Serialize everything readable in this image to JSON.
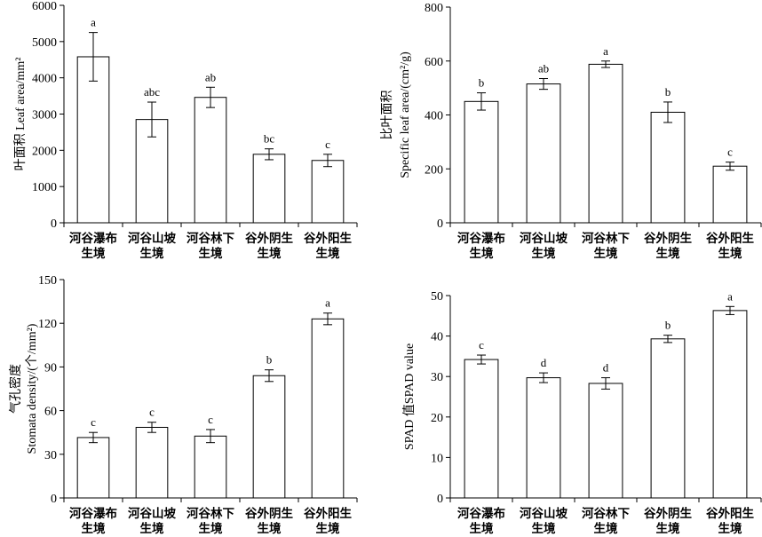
{
  "chart_data": [
    {
      "type": "bar",
      "categories": [
        [
          "河谷瀑布",
          "生境"
        ],
        [
          "河谷山坡",
          "生境"
        ],
        [
          "河谷林下",
          "生境"
        ],
        [
          "谷外阴生",
          "生境"
        ],
        [
          "谷外阳生",
          "生境"
        ]
      ],
      "values": [
        4580,
        2850,
        3460,
        1890,
        1720
      ],
      "errors": [
        670,
        480,
        280,
        150,
        170
      ],
      "labels": [
        "a",
        "abc",
        "ab",
        "bc",
        "c"
      ],
      "ylabel_lines": [
        "叶面积 Leaf area/mm²"
      ],
      "ylim": [
        0,
        6000
      ],
      "yticks": [
        0,
        1000,
        2000,
        3000,
        4000,
        5000,
        6000
      ]
    },
    {
      "type": "bar",
      "categories": [
        [
          "河谷瀑布",
          "生境"
        ],
        [
          "河谷山坡",
          "生境"
        ],
        [
          "河谷林下",
          "生境"
        ],
        [
          "谷外阴生",
          "生境"
        ],
        [
          "谷外阳生",
          "生境"
        ]
      ],
      "values": [
        450,
        515,
        588,
        410,
        210
      ],
      "errors": [
        32,
        20,
        12,
        38,
        15
      ],
      "labels": [
        "b",
        "ab",
        "a",
        "b",
        "c"
      ],
      "ylabel_lines": [
        "比叶面积",
        "Specific leaf area/(cm²/g)"
      ],
      "ylim": [
        0,
        800
      ],
      "yticks": [
        0,
        200,
        400,
        600,
        800
      ]
    },
    {
      "type": "bar",
      "categories": [
        [
          "河谷瀑布",
          "生境"
        ],
        [
          "河谷山坡",
          "生境"
        ],
        [
          "河谷林下",
          "生境"
        ],
        [
          "谷外阴生",
          "生境"
        ],
        [
          "谷外阳生",
          "生境"
        ]
      ],
      "values": [
        41.5,
        48.5,
        42.5,
        84,
        123
      ],
      "errors": [
        3.5,
        3.5,
        4.5,
        4,
        4
      ],
      "labels": [
        "c",
        "c",
        "c",
        "b",
        "a"
      ],
      "ylabel_lines": [
        "气孔密度",
        "Stomata density/(个/mm²)"
      ],
      "ylim": [
        0,
        150
      ],
      "yticks": [
        0,
        30,
        60,
        90,
        120,
        150
      ]
    },
    {
      "type": "bar",
      "categories": [
        [
          "河谷瀑布",
          "生境"
        ],
        [
          "河谷山坡",
          "生境"
        ],
        [
          "河谷林下",
          "生境"
        ],
        [
          "谷外阴生",
          "生境"
        ],
        [
          "谷外阳生",
          "生境"
        ]
      ],
      "values": [
        34.2,
        29.7,
        28.3,
        39.3,
        46.3
      ],
      "errors": [
        1.1,
        1.2,
        1.4,
        0.9,
        1.0
      ],
      "labels": [
        "c",
        "d",
        "d",
        "b",
        "a"
      ],
      "ylabel_lines": [
        "SPAD 值SPAD value"
      ],
      "ylim": [
        0,
        50
      ],
      "yticks": [
        0,
        10,
        20,
        30,
        40,
        50
      ]
    }
  ]
}
